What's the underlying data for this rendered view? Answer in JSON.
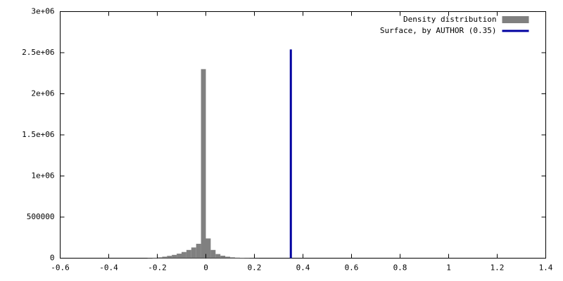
{
  "chart_data": {
    "type": "histogram",
    "bins": [
      -0.24,
      -0.22,
      -0.2,
      -0.18,
      -0.16,
      -0.14,
      -0.12,
      -0.1,
      -0.08,
      -0.06,
      -0.04,
      -0.02,
      0,
      0.02,
      0.04,
      0.06,
      0.08,
      0.1,
      0.12,
      0.14,
      0.16,
      0.18,
      0.2,
      0.22
    ],
    "counts": [
      2000,
      5000,
      10000,
      18000,
      28000,
      40000,
      55000,
      75000,
      100000,
      130000,
      175000,
      2300000,
      240000,
      100000,
      50000,
      30000,
      18000,
      10000,
      6000,
      4000,
      3000,
      2000,
      1000
    ],
    "name": "Density distribution",
    "color": "#808080",
    "vlines": [
      {
        "name": "Surface, by AUTHOR (0.35)",
        "x": 0.35,
        "y": 2540000,
        "color": "#0000a0"
      }
    ],
    "xlim": [
      -0.6,
      1.4
    ],
    "xticks": [
      -0.6,
      -0.4,
      -0.2,
      0,
      0.2,
      0.4,
      0.6,
      0.8,
      1,
      1.2,
      1.4
    ],
    "ylim": [
      0,
      3000000
    ],
    "yticks": [
      0,
      500000,
      {
        "value": 1000000,
        "label": "1e+06"
      },
      {
        "value": 1500000,
        "label": "1.5e+06"
      },
      {
        "value": 2000000,
        "label": "2e+06"
      },
      {
        "value": 2500000,
        "label": "2.5e+06"
      },
      {
        "value": 3000000,
        "label": "3e+06"
      }
    ],
    "legend": "top-right",
    "grid": false
  }
}
